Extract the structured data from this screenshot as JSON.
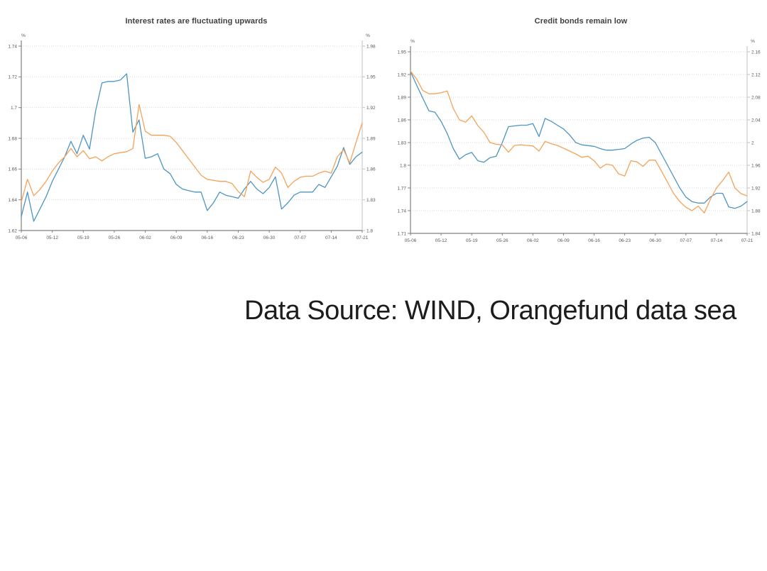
{
  "source_note": "Data Source: WIND, Orangefund data sea",
  "colors": {
    "blue_line": "#4c95c3",
    "orange_line": "#f5a259",
    "gridline": "#d9d9d9",
    "axis_dark": "#808080",
    "axis_light": "#c2c2c2",
    "tick_text": "#595959",
    "title_text": "#3f3f3f",
    "note_text": "#1c1c1c"
  },
  "chart_data": [
    {
      "type": "line",
      "title": "Interest rates are fluctuating upwards",
      "legend": "none",
      "grid": "horizontal-dotted",
      "x_tick_labels": [
        "05-06",
        "05-12",
        "05-19",
        "05-26",
        "06-02",
        "06-09",
        "06-16",
        "06-23",
        "06-30",
        "07-07",
        "07-14",
        "07-21"
      ],
      "left_axis": {
        "unit": "%",
        "min": 1.62,
        "max": 1.74,
        "ticks": [
          "1.74",
          "1.72",
          "1.7",
          "1.68",
          "1.66",
          "1.64",
          "1.62"
        ]
      },
      "right_axis": {
        "unit": "%",
        "min": 1.8,
        "max": 1.98,
        "ticks": [
          "1.98",
          "1.95",
          "1.92",
          "1.89",
          "1.86",
          "1.83",
          "1.8"
        ]
      },
      "series": [
        {
          "name": "blue-series",
          "axis": "left",
          "color": "#4c95c3",
          "values": [
            1.629,
            1.645,
            1.626,
            1.634,
            1.642,
            1.652,
            1.66,
            1.668,
            1.678,
            1.67,
            1.682,
            1.673,
            1.698,
            1.716,
            1.717,
            1.717,
            1.718,
            1.722,
            1.684,
            1.692,
            1.667,
            1.668,
            1.67,
            1.66,
            1.657,
            1.65,
            1.647,
            1.646,
            1.645,
            1.645,
            1.633,
            1.638,
            1.645,
            1.643,
            1.642,
            1.641,
            1.647,
            1.652,
            1.647,
            1.644,
            1.648,
            1.655,
            1.634,
            1.638,
            1.643,
            1.645,
            1.645,
            1.645,
            1.65,
            1.648,
            1.655,
            1.662,
            1.674,
            1.663,
            1.668,
            1.671
          ]
        },
        {
          "name": "orange-series",
          "axis": "right",
          "color": "#f5a259",
          "values": [
            1.828,
            1.85,
            1.834,
            1.84,
            1.848,
            1.858,
            1.866,
            1.872,
            1.88,
            1.872,
            1.878,
            1.87,
            1.872,
            1.868,
            1.872,
            1.875,
            1.876,
            1.877,
            1.88,
            1.923,
            1.897,
            1.893,
            1.893,
            1.893,
            1.892,
            1.886,
            1.878,
            1.87,
            1.862,
            1.854,
            1.85,
            1.849,
            1.848,
            1.848,
            1.846,
            1.838,
            1.833,
            1.858,
            1.852,
            1.847,
            1.85,
            1.862,
            1.856,
            1.842,
            1.848,
            1.852,
            1.853,
            1.853,
            1.856,
            1.858,
            1.856,
            1.872,
            1.879,
            1.866,
            1.886,
            1.905
          ]
        }
      ]
    },
    {
      "type": "line",
      "title": "Credit bonds remain low",
      "legend": "none",
      "grid": "horizontal-dotted",
      "x_tick_labels": [
        "05-06",
        "05-12",
        "05-19",
        "05-26",
        "06-02",
        "06-09",
        "06-16",
        "06-23",
        "06-30",
        "07-07",
        "07-14",
        "07-21"
      ],
      "left_axis": {
        "unit": "%",
        "min": 1.71,
        "max": 1.95,
        "ticks": [
          "1.95",
          "1.92",
          "1.89",
          "1.86",
          "1.83",
          "1.8",
          "1.77",
          "1.74",
          "1.71"
        ]
      },
      "right_axis": {
        "unit": "%",
        "min": 1.84,
        "max": 2.16,
        "ticks": [
          "2.16",
          "2.12",
          "2.08",
          "2.04",
          "2",
          "1.96",
          "1.92",
          "1.88",
          "1.84"
        ]
      },
      "series": [
        {
          "name": "blue-series",
          "axis": "left",
          "color": "#4c95c3",
          "values": [
            1.924,
            1.906,
            1.889,
            1.872,
            1.87,
            1.858,
            1.842,
            1.822,
            1.808,
            1.814,
            1.817,
            1.806,
            1.804,
            1.81,
            1.812,
            1.83,
            1.851,
            1.852,
            1.853,
            1.853,
            1.855,
            1.838,
            1.862,
            1.858,
            1.853,
            1.848,
            1.84,
            1.83,
            1.827,
            1.826,
            1.825,
            1.822,
            1.82,
            1.82,
            1.821,
            1.822,
            1.828,
            1.833,
            1.836,
            1.837,
            1.83,
            1.815,
            1.8,
            1.785,
            1.77,
            1.758,
            1.752,
            1.75,
            1.75,
            1.758,
            1.763,
            1.763,
            1.745,
            1.743,
            1.746,
            1.752
          ]
        },
        {
          "name": "orange-series",
          "axis": "right",
          "color": "#f5a259",
          "values": [
            2.126,
            2.112,
            2.092,
            2.086,
            2.086,
            2.088,
            2.091,
            2.06,
            2.04,
            2.036,
            2.047,
            2.03,
            2.018,
            2.0,
            1.997,
            1.996,
            1.983,
            1.995,
            1.996,
            1.995,
            1.994,
            1.985,
            2.002,
            1.998,
            1.995,
            1.99,
            1.985,
            1.98,
            1.974,
            1.976,
            1.968,
            1.955,
            1.962,
            1.96,
            1.945,
            1.941,
            1.968,
            1.966,
            1.958,
            1.969,
            1.969,
            1.95,
            1.93,
            1.91,
            1.896,
            1.886,
            1.88,
            1.888,
            1.876,
            1.9,
            1.92,
            1.933,
            1.948,
            1.92,
            1.91,
            1.906
          ]
        }
      ]
    }
  ]
}
